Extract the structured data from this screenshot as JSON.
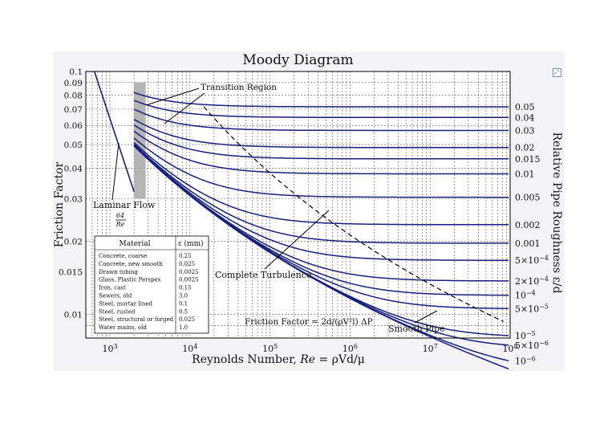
{
  "chart_data": {
    "type": "line",
    "title": "Moody Diagram",
    "xlabel": "Reynolds Number, Re = ρVd/μ",
    "ylabel": "Friction Factor",
    "y2label": "Relative Pipe Roughness ε/d",
    "x_scale": "log",
    "y_scale": "log",
    "xlim": [
      500,
      100000000
    ],
    "ylim": [
      0.008,
      0.1
    ],
    "grid": true,
    "x_ticks": [
      {
        "value": 1000,
        "label": "10³"
      },
      {
        "value": 10000,
        "label": "10⁴"
      },
      {
        "value": 100000,
        "label": "10⁵"
      },
      {
        "value": 1000000,
        "label": "10⁶"
      },
      {
        "value": 10000000,
        "label": "10⁷"
      },
      {
        "value": 100000000,
        "label": "10⁸"
      }
    ],
    "y_ticks": [
      {
        "value": 0.1,
        "label": "0.1"
      },
      {
        "value": 0.09,
        "label": "0.09"
      },
      {
        "value": 0.08,
        "label": "0.08"
      },
      {
        "value": 0.07,
        "label": "0.07"
      },
      {
        "value": 0.06,
        "label": "0.06"
      },
      {
        "value": 0.05,
        "label": "0.05"
      },
      {
        "value": 0.04,
        "label": "0.04"
      },
      {
        "value": 0.03,
        "label": "0.03"
      },
      {
        "value": 0.02,
        "label": "0.02"
      },
      {
        "value": 0.015,
        "label": "0.015"
      },
      {
        "value": 0.01,
        "label": "0.01"
      }
    ],
    "roughness_series": [
      {
        "value": 0.05,
        "label": "0.05"
      },
      {
        "value": 0.04,
        "label": "0.04"
      },
      {
        "value": 0.03,
        "label": "0.03"
      },
      {
        "value": 0.02,
        "label": "0.02"
      },
      {
        "value": 0.015,
        "label": "0.015"
      },
      {
        "value": 0.01,
        "label": "0.01"
      },
      {
        "value": 0.005,
        "label": "0.005"
      },
      {
        "value": 0.002,
        "label": "0.002"
      },
      {
        "value": 0.001,
        "label": "0.001"
      },
      {
        "value": 0.0005,
        "label": "5×10⁻⁴"
      },
      {
        "value": 0.0002,
        "label": "2×10⁻⁴"
      },
      {
        "value": 0.0001,
        "label": "10⁻⁴"
      },
      {
        "value": 5e-05,
        "label": "5×10⁻⁵"
      },
      {
        "value": 1e-05,
        "label": "10⁻⁵"
      },
      {
        "value": 5e-06,
        "label": "5×10⁻⁶"
      },
      {
        "value": 1e-06,
        "label": "10⁻⁶"
      },
      {
        "value": 0,
        "label": ""
      }
    ],
    "laminar_flow": {
      "re_start": 640,
      "re_end": 2000,
      "formula": "64/Re"
    },
    "transition_region": {
      "re_min": 2000,
      "re_max": 2800
    },
    "annotations": {
      "transition_region": "Transition Region",
      "laminar_flow": "Laminar Flow",
      "laminar_numerator": "64",
      "laminar_denominator": "Re",
      "complete_turbulence": "Complete Turbulence",
      "smooth_pipe": "Smooth Pipe",
      "friction_factor_formula": "Friction Factor = 2d/(ρV²l) ΔP"
    }
  },
  "material_table": {
    "headers": [
      "Material",
      "ε (mm)"
    ],
    "rows": [
      {
        "material": "Concrete, coarse",
        "epsilon": "0.25"
      },
      {
        "material": "Concrete, new smooth",
        "epsilon": "0.025"
      },
      {
        "material": "Drawn tubing",
        "epsilon": "0.0025"
      },
      {
        "material": "Glass, Plastic Perspex",
        "epsilon": "0.0025"
      },
      {
        "material": "Iron, cast",
        "epsilon": "0.15"
      },
      {
        "material": "Sewers, old",
        "epsilon": "3.0"
      },
      {
        "material": "Steel, mortar lined",
        "epsilon": "0.1"
      },
      {
        "material": "Steel, rusted",
        "epsilon": "0.5"
      },
      {
        "material": "Steel, structural or forged",
        "epsilon": "0.025"
      },
      {
        "material": "Water mains, old",
        "epsilon": "1.0"
      }
    ]
  },
  "colors": {
    "curve": "#16207a",
    "panel": "#f4f4f6",
    "transition_band": "#a8a8a8"
  },
  "icons": {
    "expand": "expand-icon"
  }
}
